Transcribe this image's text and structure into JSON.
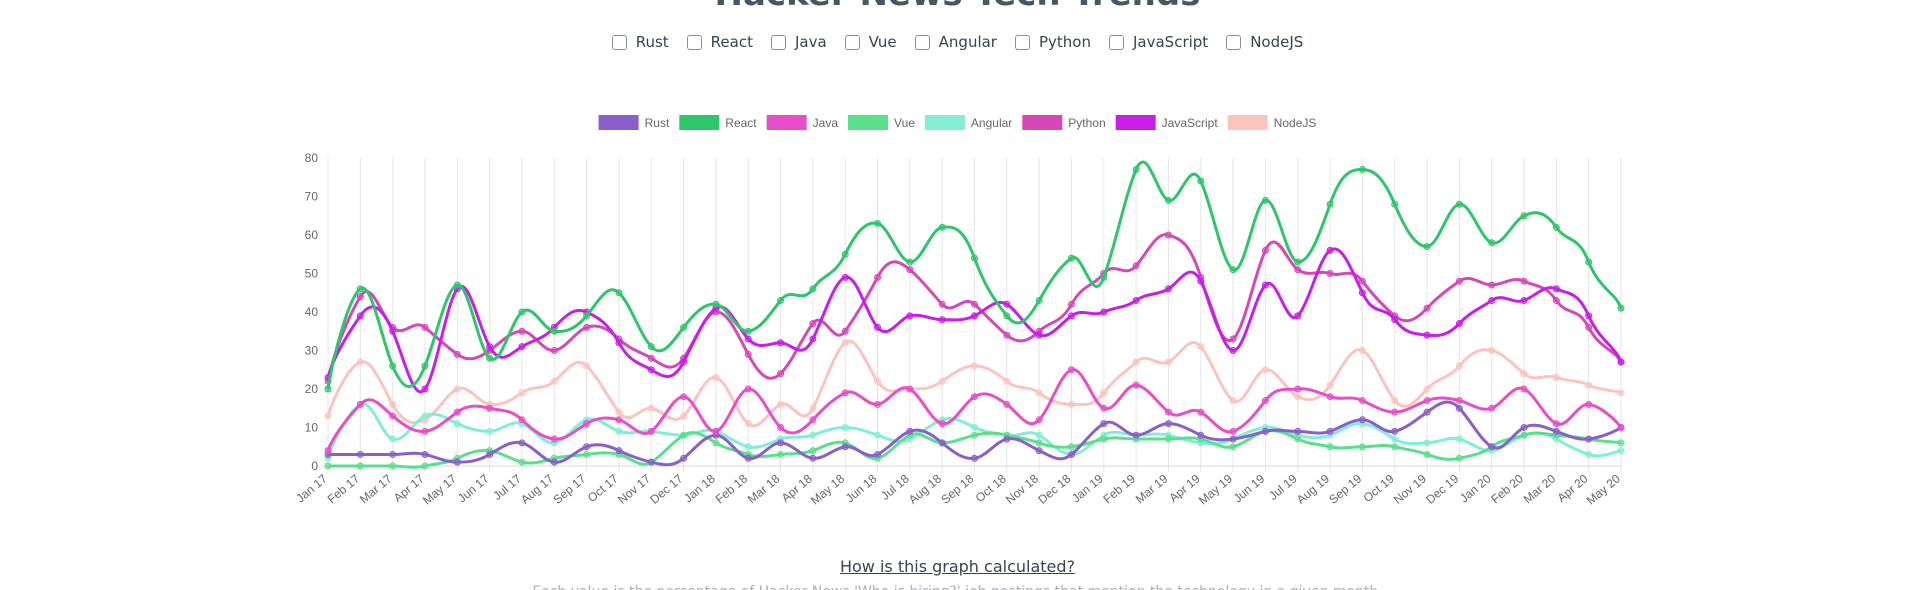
{
  "page": {
    "title": "Hacker News Tech Trends",
    "how_link": "How is this graph calculated?",
    "footer_text": "Each value is the percentage of Hacker News 'Who is hiring?' job postings that mention the technology in a given month."
  },
  "filters": [
    {
      "label": "Rust",
      "checked": false
    },
    {
      "label": "React",
      "checked": false
    },
    {
      "label": "Java",
      "checked": false
    },
    {
      "label": "Vue",
      "checked": false
    },
    {
      "label": "Angular",
      "checked": false
    },
    {
      "label": "Python",
      "checked": false
    },
    {
      "label": "JavaScript",
      "checked": false
    },
    {
      "label": "NodeJS",
      "checked": false
    }
  ],
  "chart_data": {
    "type": "line",
    "title": "",
    "xlabel": "",
    "ylabel": "",
    "ylim": [
      0,
      80
    ],
    "yticks": [
      0,
      10,
      20,
      30,
      40,
      50,
      60,
      70,
      80
    ],
    "grid": "vertical",
    "legend_position": "top",
    "x": [
      "Jan 17",
      "Feb 17",
      "Mar 17",
      "Apr 17",
      "May 17",
      "Jun 17",
      "Jul 17",
      "Aug 17",
      "Sep 17",
      "Oct 17",
      "Nov 17",
      "Dec 17",
      "Jan 18",
      "Feb 18",
      "Mar 18",
      "Apr 18",
      "May 18",
      "Jun 18",
      "Jul 18",
      "Aug 18",
      "Sep 18",
      "Oct 18",
      "Nov 18",
      "Dec 18",
      "Jan 19",
      "Feb 19",
      "Mar 19",
      "Apr 19",
      "May 19",
      "Jun 19",
      "Jul 19",
      "Aug 19",
      "Sep 19",
      "Oct 19",
      "Nov 19",
      "Dec 19",
      "Jan 20",
      "Feb 20",
      "Mar 20",
      "Apr 20",
      "May 20"
    ],
    "series": [
      {
        "name": "Rust",
        "color": "#8a5fcc",
        "values": [
          3,
          3,
          3,
          3,
          1,
          3,
          6,
          1,
          5,
          4,
          1,
          2,
          8,
          2,
          6,
          2,
          5,
          3,
          9,
          6,
          2,
          7,
          4,
          3,
          11,
          8,
          11,
          8,
          7,
          9,
          9,
          9,
          12,
          9,
          14,
          15,
          5,
          10,
          9,
          7,
          10
        ]
      },
      {
        "name": "React",
        "color": "#2ec66a",
        "values": [
          20,
          46,
          26,
          26,
          47,
          28,
          40,
          35,
          39,
          45,
          31,
          36,
          42,
          35,
          43,
          46,
          55,
          63,
          53,
          62,
          54,
          39,
          43,
          54,
          49,
          77,
          69,
          74,
          51,
          69,
          53,
          68,
          77,
          68,
          57,
          68,
          58,
          65,
          62,
          53,
          41
        ]
      },
      {
        "name": "Java",
        "color": "#e84ec9",
        "values": [
          4,
          16,
          13,
          9,
          14,
          15,
          12,
          7,
          11,
          12,
          9,
          18,
          9,
          20,
          10,
          12,
          19,
          16,
          20,
          11,
          18,
          16,
          12,
          25,
          15,
          21,
          14,
          14,
          9,
          17,
          20,
          18,
          17,
          14,
          17,
          17,
          15,
          20,
          11,
          16,
          10
        ]
      },
      {
        "name": "Vue",
        "color": "#5ae08c",
        "values": [
          0,
          0,
          0,
          0,
          2,
          4,
          1,
          2,
          3,
          3,
          1,
          8,
          6,
          3,
          3,
          4,
          6,
          2,
          8,
          6,
          8,
          8,
          6,
          5,
          7,
          7,
          7,
          7,
          5,
          9,
          7,
          5,
          5,
          5,
          3,
          2,
          5,
          8,
          8,
          7,
          6
        ]
      },
      {
        "name": "Angular",
        "color": "#84edd6",
        "values": [
          2,
          16,
          7,
          13,
          11,
          9,
          11,
          6,
          12,
          9,
          9,
          8,
          9,
          5,
          7,
          8,
          10,
          8,
          7,
          12,
          10,
          8,
          8,
          3,
          8,
          8,
          8,
          6,
          7,
          10,
          8,
          8,
          11,
          7,
          6,
          7,
          4,
          8,
          7,
          3,
          4
        ]
      },
      {
        "name": "Python",
        "color": "#d648b8",
        "values": [
          22,
          44,
          36,
          36,
          29,
          30,
          35,
          30,
          36,
          33,
          28,
          28,
          40,
          29,
          24,
          37,
          35,
          49,
          51,
          42,
          42,
          34,
          35,
          42,
          50,
          52,
          60,
          49,
          33,
          56,
          51,
          50,
          48,
          39,
          41,
          48,
          47,
          48,
          43,
          36,
          27
        ]
      },
      {
        "name": "JavaScript",
        "color": "#c81eea",
        "values": [
          23,
          39,
          35,
          20,
          46,
          31,
          31,
          36,
          40,
          32,
          25,
          27,
          41,
          33,
          32,
          33,
          49,
          36,
          39,
          38,
          39,
          42,
          34,
          39,
          40,
          43,
          46,
          48,
          30,
          47,
          39,
          56,
          45,
          38,
          34,
          37,
          43,
          43,
          46,
          39,
          27
        ]
      },
      {
        "name": "NodeJS",
        "color": "#fbc4bd",
        "values": [
          13,
          27,
          16,
          12,
          20,
          16,
          19,
          22,
          26,
          14,
          15,
          13,
          23,
          11,
          16,
          15,
          32,
          22,
          20,
          22,
          26,
          22,
          19,
          16,
          19,
          27,
          27,
          31,
          17,
          25,
          18,
          21,
          30,
          17,
          20,
          26,
          30,
          24,
          23,
          21,
          19
        ]
      }
    ]
  }
}
